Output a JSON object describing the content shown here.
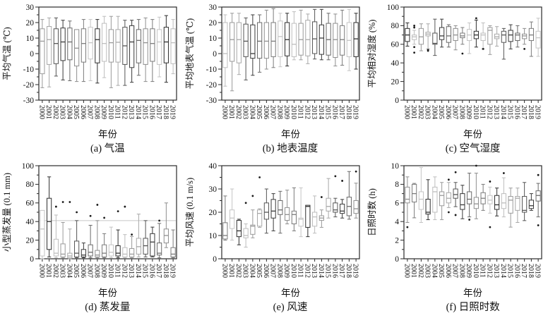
{
  "figure": {
    "background": "#ffffff",
    "style": {
      "frame_color": "#2a2a2a",
      "text_color": "#111111",
      "refline_color": "#c8c8c8",
      "outlier_color": "#1a1a1a",
      "box_shades": [
        "#9a9a9a",
        "#3a3a3a",
        "#7b7b7b",
        "#bdbdbd",
        "#555555",
        "#8f8f8f",
        "#2e2e2e",
        "#a8a8a8",
        "#6a6a6a",
        "#c4c4c4"
      ]
    }
  },
  "box_format": "[whisker_low, q1, median, q3, whisker_high, outliers[] (optional)]",
  "chart_data": [
    {
      "id": "a",
      "type": "box",
      "caption": "(a) 气温",
      "ylabel": "平均气温 (℃)",
      "xlabel": "年份",
      "ylim": [
        -30,
        30
      ],
      "yticks": [
        -30,
        -20,
        -10,
        0,
        10,
        20,
        30
      ],
      "minor_step": 5,
      "categories": [
        "2000",
        "2001",
        "2002",
        "2003",
        "2004",
        "2005",
        "2006",
        "2007",
        "2008",
        "2009",
        "2010",
        "2011",
        "2012",
        "2013",
        "2014",
        "2015",
        "2016",
        "2017",
        "2018",
        "2019"
      ],
      "boxes": [
        [
          -22,
          -13,
          8,
          16,
          22
        ],
        [
          -21.5,
          -7,
          9,
          17.5,
          23
        ],
        [
          -14.5,
          -6.5,
          6.5,
          16,
          23
        ],
        [
          -17,
          -4.5,
          7.5,
          16.5,
          21.5
        ],
        [
          -17.5,
          -4,
          7.5,
          16.5,
          21
        ],
        [
          -18,
          -8,
          3.5,
          15.5,
          15.5
        ],
        [
          -18,
          -5.5,
          6.5,
          16,
          22
        ],
        [
          -17.5,
          -3.5,
          7,
          17,
          22
        ],
        [
          -19,
          -6,
          9,
          16,
          22
        ],
        [
          -15.5,
          -5,
          6.5,
          19.5,
          24
        ],
        [
          -22,
          -5.5,
          7,
          15.5,
          24
        ],
        [
          -20.5,
          -5.5,
          7.3,
          15.5,
          24
        ],
        [
          -20.5,
          -7,
          5,
          17,
          21.5
        ],
        [
          -18.5,
          -9,
          7.5,
          18,
          21.5
        ],
        [
          -14,
          -6,
          8.5,
          15.5,
          22
        ],
        [
          -18,
          -7,
          7,
          16,
          23
        ],
        [
          -18,
          -5,
          6.5,
          16,
          22
        ],
        [
          -15,
          -7,
          7.5,
          15.5,
          23.5
        ],
        [
          -18.5,
          -6,
          7.5,
          17,
          24.5
        ],
        [
          -13,
          -6.5,
          7,
          16,
          22
        ]
      ]
    },
    {
      "id": "b",
      "type": "box",
      "caption": "(b) 地表温度",
      "ylabel": "平均地表气温 (℃)",
      "xlabel": "年份",
      "ylim": [
        -30,
        30
      ],
      "yticks": [
        -30,
        -20,
        -10,
        0,
        10,
        20,
        30
      ],
      "minor_step": 5,
      "categories": [
        "2000",
        "2001",
        "2002",
        "2003",
        "2004",
        "2005",
        "2006",
        "2007",
        "2008",
        "2009",
        "2010",
        "2011",
        "2012",
        "2013",
        "2014",
        "2015",
        "2016",
        "2017",
        "2018",
        "2019"
      ],
      "boxes": [
        [
          -21,
          -9,
          0,
          20,
          25
        ],
        [
          -24,
          -5,
          9,
          20,
          26
        ],
        [
          -13.5,
          -6,
          9,
          20,
          26
        ],
        [
          -17,
          -2,
          8,
          19,
          23
        ],
        [
          -14,
          -3,
          0,
          18.5,
          25
        ],
        [
          -12,
          -3,
          8,
          20,
          25
        ],
        [
          -10,
          -3,
          8,
          20,
          28
        ],
        [
          -9,
          -2,
          8,
          20,
          29
        ],
        [
          -8.5,
          -2,
          11,
          21,
          26
        ],
        [
          -8,
          -1.5,
          9,
          20,
          26
        ],
        [
          -4,
          -2,
          6,
          19.5,
          27
        ],
        [
          -4,
          -1,
          9,
          19.5,
          28
        ],
        [
          -6.5,
          -1.5,
          9,
          21.5,
          25.5
        ],
        [
          -3.5,
          0,
          9.5,
          20.5,
          28.5
        ],
        [
          -4,
          -0.5,
          10,
          18.5,
          28.5
        ],
        [
          -4,
          -1,
          9,
          19.5,
          26
        ],
        [
          -8,
          -2.5,
          9,
          19.5,
          25.5
        ],
        [
          -7.5,
          -1,
          9,
          18,
          28
        ],
        [
          -11,
          -2,
          8.5,
          20,
          28.5
        ],
        [
          -10,
          -2,
          9.5,
          20,
          26
        ]
      ]
    },
    {
      "id": "c",
      "type": "box",
      "caption": "(c) 空气湿度",
      "ylabel": "平均相对湿度 (%)",
      "xlabel": "年份",
      "ylim": [
        0,
        100
      ],
      "yticks": [
        0,
        20,
        40,
        60,
        80,
        100
      ],
      "minor_step": 10,
      "categories": [
        "2000",
        "2001",
        "2002",
        "2003",
        "2004",
        "2005",
        "2006",
        "2007",
        "2008",
        "2009",
        "2010",
        "2011",
        "2012",
        "2013",
        "2014",
        "2015",
        "2016",
        "2017",
        "2018",
        "2019"
      ],
      "boxes": [
        [
          58,
          63,
          70,
          77,
          83
        ],
        [
          60,
          65,
          68,
          70,
          75,
          [
            80,
            78,
            57,
            51
          ]
        ],
        [
          53,
          60,
          68,
          77,
          82
        ],
        [
          55,
          69,
          71,
          73,
          82,
          [
            54,
            53
          ]
        ],
        [
          48,
          60,
          61,
          72,
          87
        ],
        [
          57,
          65,
          69,
          78,
          87
        ],
        [
          57,
          62,
          69,
          79,
          81
        ],
        [
          54,
          64,
          70,
          77,
          80
        ],
        [
          60,
          67,
          69,
          72,
          78,
          [
            50
          ]
        ],
        [
          50,
          64,
          70,
          76,
          83
        ],
        [
          57,
          66,
          70,
          74,
          86,
          [
            88
          ]
        ],
        [
          55,
          64,
          70,
          72,
          83,
          [
            55
          ]
        ],
        [
          49,
          60,
          75,
          78,
          80
        ],
        [
          58,
          66,
          68,
          71,
          79
        ],
        [
          44,
          62,
          70,
          74,
          77
        ],
        [
          55,
          63,
          70,
          75,
          81
        ],
        [
          57,
          64,
          70,
          72,
          80
        ],
        [
          60,
          66,
          69,
          71,
          77,
          [
            55
          ]
        ],
        [
          47,
          64,
          70,
          77,
          84
        ],
        [
          47,
          56,
          67,
          74,
          88
        ]
      ]
    },
    {
      "id": "d",
      "type": "box",
      "caption": "(d) 蒸发量",
      "ylabel": "小型蒸发量 (0.1 mm)",
      "xlabel": "年份",
      "ylim": [
        0,
        100
      ],
      "yticks": [
        0,
        20,
        40,
        60,
        80,
        100
      ],
      "minor_step": 10,
      "refline": 41,
      "categories": [
        "2000",
        "2001",
        "2002",
        "2003",
        "2004",
        "2005",
        "2006",
        "2007",
        "2008",
        "2009",
        "2010",
        "2011",
        "2012",
        "2013",
        "2014",
        "2015",
        "2016",
        "2017",
        "2018",
        "2019"
      ],
      "boxes": [
        [
          0,
          3,
          32,
          52,
          52
        ],
        [
          2,
          10,
          40,
          65,
          88
        ],
        [
          1,
          3,
          6,
          21,
          47,
          [
            56
          ]
        ],
        [
          1,
          2,
          5,
          16,
          39,
          [
            61
          ]
        ],
        [
          0,
          1,
          3,
          6,
          32,
          [
            61
          ]
        ],
        [
          1,
          2,
          6,
          19,
          41,
          [
            50
          ]
        ],
        [
          1,
          2,
          4,
          10,
          17
        ],
        [
          1,
          3,
          7,
          15,
          36,
          [
            46
          ]
        ],
        [
          1,
          2,
          4,
          9,
          41,
          [
            58
          ]
        ],
        [
          1,
          2,
          6,
          15,
          27,
          [
            44
          ]
        ],
        [
          1,
          3,
          7,
          15,
          34
        ],
        [
          1,
          3,
          6,
          14,
          31,
          [
            51
          ]
        ],
        [
          1,
          2,
          5,
          12,
          26,
          [
            56
          ]
        ],
        [
          1,
          2,
          5,
          11,
          24,
          [
            26
          ]
        ],
        [
          2,
          5,
          13,
          22,
          48
        ],
        [
          2,
          5,
          14,
          22,
          41
        ],
        [
          2,
          3,
          18,
          27,
          34
        ],
        [
          1,
          4,
          6,
          17,
          38,
          [
            41
          ]
        ],
        [
          12,
          17,
          25,
          32,
          60
        ],
        [
          1,
          2,
          5,
          12,
          31
        ]
      ]
    },
    {
      "id": "e",
      "type": "box",
      "caption": "(e) 风速",
      "ylabel": "平均风速 (0.1 m/s)",
      "xlabel": "年份",
      "ylim": [
        0,
        40
      ],
      "yticks": [
        0,
        10,
        20,
        30,
        40
      ],
      "minor_step": 5,
      "categories": [
        "2000",
        "2001",
        "2002",
        "2003",
        "2004",
        "2005",
        "2006",
        "2007",
        "2008",
        "2009",
        "2010",
        "2011",
        "2012",
        "2013",
        "2014",
        "2015",
        "2016",
        "2017",
        "2018",
        "2019"
      ],
      "boxes": [
        [
          8,
          8.5,
          10,
          15.5,
          27
        ],
        [
          8,
          13,
          17.5,
          21,
          30
        ],
        [
          6,
          9.5,
          12,
          16.5,
          17
        ],
        [
          5,
          9,
          10,
          13,
          15,
          [
            24
          ]
        ],
        [
          9,
          10.5,
          14,
          14.5,
          21,
          [
            27
          ]
        ],
        [
          13.5,
          14,
          19.5,
          21,
          21.5,
          [
            35
          ]
        ],
        [
          11,
          17,
          20,
          24,
          30
        ],
        [
          12,
          17.5,
          20.5,
          25.5,
          28
        ],
        [
          11,
          19,
          21,
          25,
          29
        ],
        [
          15,
          16.5,
          19,
          22,
          29.5
        ],
        [
          12,
          15,
          19,
          20.5,
          30.5
        ],
        [
          9.5,
          14,
          17,
          17.5,
          30.5
        ],
        [
          9.5,
          13.5,
          22.5,
          23,
          23
        ],
        [
          11,
          14,
          18,
          20,
          27
        ],
        [
          13.5,
          16.5,
          17.5,
          18.5,
          21,
          [
            26.5
          ]
        ],
        [
          17.5,
          20.5,
          22.5,
          26,
          34.5
        ],
        [
          18,
          20,
          21,
          24,
          26,
          [
            35.5
          ]
        ],
        [
          17.5,
          19.5,
          20.5,
          23.5,
          25.5,
          [
            33.5
          ]
        ],
        [
          17,
          18.5,
          22.5,
          26.5,
          37.5
        ],
        [
          17.5,
          19.5,
          21.5,
          25,
          32.5,
          [
            37.5
          ]
        ]
      ]
    },
    {
      "id": "f",
      "type": "box",
      "caption": "(f) 日照时数",
      "ylabel": "日照时数 (h)",
      "xlabel": "年份",
      "ylim": [
        0,
        10
      ],
      "yticks": [
        0,
        2,
        4,
        6,
        8,
        10
      ],
      "minor_step": 1,
      "categories": [
        "2000",
        "2001",
        "2002",
        "2003",
        "2004",
        "2005",
        "2006",
        "2007",
        "2008",
        "2009",
        "2010",
        "2011",
        "2012",
        "2013",
        "2014",
        "2015",
        "2016",
        "2017",
        "2018",
        "2019"
      ],
      "boxes": [
        [
          3.9,
          6.0,
          6.4,
          7.7,
          8.8,
          [
            3.4
          ]
        ],
        [
          4.4,
          6.1,
          7.0,
          8.0,
          8.1
        ],
        [
          3.9,
          5.3,
          6.4,
          7.2,
          9.8
        ],
        [
          4.2,
          4.8,
          5.0,
          6.4,
          8.5
        ],
        [
          4.2,
          5.0,
          7.2,
          7.7,
          8.8
        ],
        [
          4.2,
          5.7,
          6.8,
          7.2,
          8.2
        ],
        [
          5.5,
          6.0,
          6.5,
          7.1,
          8.2,
          [
            8.5,
            5.0
          ]
        ],
        [
          5.6,
          6.5,
          6.9,
          7.5,
          8.2,
          [
            9.3,
            4.7
          ]
        ],
        [
          4.3,
          5.3,
          5.8,
          7.0,
          7.9
        ],
        [
          4.5,
          5.9,
          6.4,
          7.2,
          9.2,
          [
            4.2
          ]
        ],
        [
          4.3,
          5.4,
          5.9,
          6.6,
          9.2,
          [
            10.0
          ]
        ],
        [
          5.2,
          5.9,
          6.5,
          7.1,
          8.0
        ],
        [
          4.9,
          5.9,
          6.3,
          6.8,
          7.7,
          [
            8.3,
            3.4
          ]
        ],
        [
          4.6,
          5.3,
          5.8,
          6.8,
          7.6
        ],
        [
          4.5,
          5.4,
          6.0,
          7.0,
          8.7,
          [
            9.2
          ]
        ],
        [
          3.4,
          4.9,
          6.3,
          6.7,
          7.6
        ],
        [
          3.9,
          5.2,
          6.5,
          6.7,
          7.6
        ],
        [
          4.1,
          5.0,
          5.2,
          6.7,
          8.2
        ],
        [
          5.2,
          5.4,
          5.7,
          6.3,
          7.0
        ],
        [
          4.5,
          6.2,
          6.8,
          7.3,
          8.1,
          [
            9.0,
            3.6
          ]
        ]
      ]
    }
  ]
}
